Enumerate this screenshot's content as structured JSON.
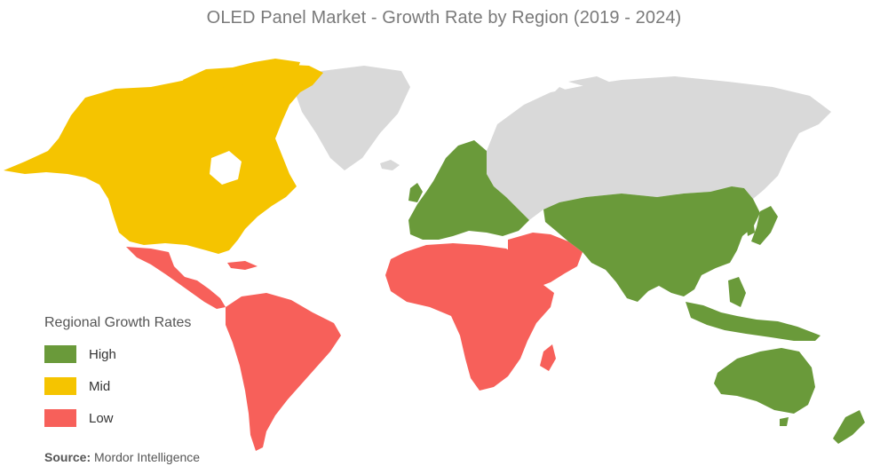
{
  "title": "OLED Panel Market - Growth Rate by Region (2019 - 2024)",
  "legend": {
    "title": "Regional Growth Rates",
    "items": [
      {
        "label": "High",
        "color": "#6a9a3a"
      },
      {
        "label": "Mid",
        "color": "#f5c400"
      },
      {
        "label": "Low",
        "color": "#f7605a"
      }
    ]
  },
  "colors": {
    "high": "#6a9a3a",
    "mid": "#f5c400",
    "low": "#f7605a",
    "no_data": "#d9d9d9"
  },
  "regions": [
    {
      "name": "North America",
      "rate": "Mid"
    },
    {
      "name": "Latin America",
      "rate": "Low"
    },
    {
      "name": "Europe",
      "rate": "High"
    },
    {
      "name": "Asia-Pacific",
      "rate": "High"
    },
    {
      "name": "Middle East and Africa",
      "rate": "Low"
    },
    {
      "name": "Greenland",
      "rate": null
    },
    {
      "name": "Russia",
      "rate": null
    }
  ],
  "source": {
    "prefix": "Source:",
    "text": "Mordor Intelligence"
  }
}
